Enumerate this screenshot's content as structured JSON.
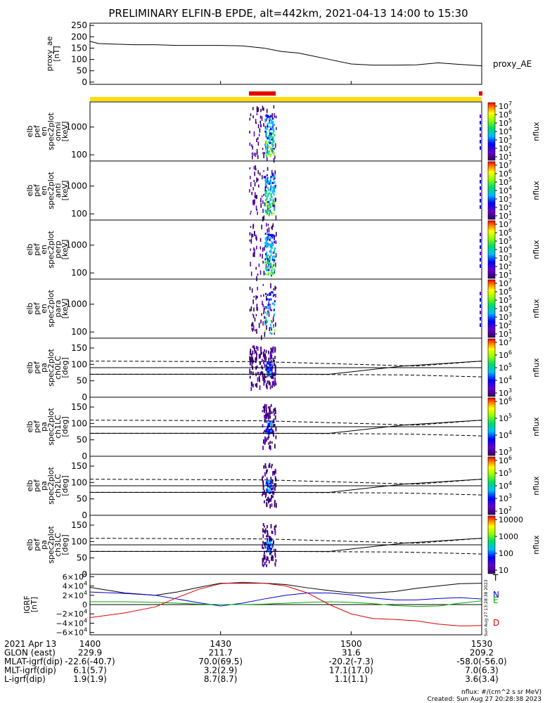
{
  "title": "PRELIMINARY ELFIN-B EPDE, alt=442km, 2021-04-13 14:00 to 15:30",
  "colors": {
    "sci_zone_bar": "#ffdd00",
    "sci_collection": "#e60000",
    "grf_T": "#000000",
    "grf_N": "#0000cc",
    "grf_E": "#00aa00",
    "grf_D": "#dd0000"
  },
  "footer": {
    "units": "nflux: #/(cm^2 s sr MeV)",
    "created": "Created: Sun Aug 27 20:28:38 2023",
    "side_stamp": "Sun Aug 27 13:28:38 2023"
  },
  "chart_data": [
    {
      "id": "proxy_ae",
      "type": "line",
      "ylabel": "proxy_ae [nT]",
      "legend": "proxy_AE",
      "ylim": [
        -10,
        260
      ],
      "yticks": [
        "0",
        "50",
        "100",
        "150",
        "200",
        "250"
      ],
      "x_minutes": [
        0,
        2,
        5,
        10,
        15,
        20,
        25,
        30,
        35,
        40,
        44,
        48,
        50,
        55,
        60,
        65,
        70,
        75,
        80,
        85,
        90
      ],
      "y": [
        180,
        170,
        168,
        165,
        165,
        162,
        162,
        162,
        160,
        150,
        135,
        128,
        120,
        100,
        80,
        75,
        75,
        76,
        85,
        78,
        72
      ]
    },
    {
      "id": "energy_panels",
      "type": "heatmap",
      "ylog": true,
      "ylim": [
        60,
        8000
      ],
      "yticks": [
        "100",
        "1000"
      ],
      "colorbar_label": "nflux",
      "colorbar_ticks": [
        "10^1",
        "10^2",
        "10^3",
        "10^4",
        "10^5",
        "10^6",
        "10^7"
      ],
      "panels": [
        {
          "ylabel": [
            "elb",
            "pef",
            "en",
            "spec2plot",
            "omni",
            "[keV]"
          ]
        },
        {
          "ylabel": [
            "elb",
            "pef",
            "en",
            "spec2plot",
            "anti",
            "[keV]"
          ]
        },
        {
          "ylabel": [
            "elb",
            "pef",
            "en",
            "spec2plot",
            "perp",
            "[keV]"
          ]
        },
        {
          "ylabel": [
            "elb",
            "pef",
            "en",
            "spec2plot",
            "para",
            "[keV]"
          ]
        }
      ]
    },
    {
      "id": "pitch_angle_panels",
      "type": "heatmap",
      "ylim": [
        0,
        180
      ],
      "yticks": [
        "0",
        "50",
        "100",
        "150"
      ],
      "colorbar_label": "nflux",
      "panels": [
        {
          "ylabel": [
            "elb",
            "pef",
            "pa",
            "spec2plot",
            "ch0LC",
            "[deg]"
          ],
          "colorbar_ticks": [
            "10^3",
            "10^4",
            "10^5",
            "10^6",
            "10^7"
          ]
        },
        {
          "ylabel": [
            "elb",
            "pef",
            "pa",
            "spec2plot",
            "ch1LC",
            "[deg]"
          ],
          "colorbar_ticks": [
            "10^3",
            "10^4",
            "10^5",
            "10^6"
          ]
        },
        {
          "ylabel": [
            "elb",
            "pef",
            "pa",
            "spec2plot",
            "ch2LC",
            "[deg]"
          ],
          "colorbar_ticks": [
            "10^2",
            "10^3",
            "10^4",
            "10^5",
            "10^6"
          ]
        },
        {
          "ylabel": [
            "elb",
            "pef",
            "pa",
            "spec2plot",
            "ch3LC",
            "[deg]"
          ],
          "colorbar_ticks": [
            "10",
            "100",
            "1000",
            "10000"
          ]
        }
      ]
    },
    {
      "id": "igrf",
      "type": "line",
      "ylabel": "IGRF [nT]",
      "ylim": [
        -65000,
        65000
      ],
      "yticks": [
        "6×10^4",
        "4×10^4",
        "2×10^4",
        "0",
        "−2×10^4",
        "−4×10^4",
        "−6×10^4"
      ],
      "x_minutes": [
        0,
        8,
        15,
        20,
        25,
        30,
        35,
        40,
        45,
        50,
        55,
        60,
        65,
        70,
        75,
        80,
        85,
        90
      ],
      "series": [
        {
          "name": "T",
          "values": [
            37000,
            25000,
            20000,
            27000,
            37000,
            46000,
            46000,
            46000,
            43000,
            36000,
            30000,
            25000,
            25000,
            28000,
            35000,
            40000,
            45000,
            46000
          ]
        },
        {
          "name": "N",
          "values": [
            27000,
            24000,
            20000,
            12000,
            4000,
            -3000,
            3000,
            12000,
            20000,
            25000,
            25000,
            21000,
            14000,
            10000,
            10000,
            13000,
            15000,
            12000
          ]
        },
        {
          "name": "E",
          "values": [
            6000,
            6000,
            5000,
            3000,
            1000,
            0,
            0,
            1000,
            3000,
            5000,
            6000,
            5000,
            2000,
            -2000,
            -4000,
            -3000,
            3000,
            8000
          ]
        },
        {
          "name": "D",
          "values": [
            -28000,
            -18000,
            -5000,
            15000,
            33000,
            45000,
            48000,
            46000,
            40000,
            25000,
            0,
            -20000,
            -30000,
            -32000,
            -35000,
            -42000,
            -46000,
            -45000
          ]
        }
      ]
    },
    {
      "id": "orbit_table",
      "type": "table",
      "rows": [
        {
          "label": "2021 Apr 13",
          "values": [
            "1400",
            "1430",
            "1500",
            "1530"
          ]
        },
        {
          "label": "GLON (east)",
          "values": [
            "229.9",
            "211.7",
            "31.6",
            "209.2"
          ]
        },
        {
          "label": "MLAT-igrf(dip)",
          "values": [
            "-22.6(-40.7)",
            "70.0(69.5)",
            "-20.2(-7.3)",
            "-58.0(-56.0)"
          ]
        },
        {
          "label": "MLT-igrf(dip)",
          "values": [
            "6.1(5.7)",
            "3.2(2.9)",
            "17.1(17.0)",
            "7.0(6.3)"
          ]
        },
        {
          "label": "L-igrf(dip)",
          "values": [
            "1.9(1.9)",
            "8.7(8.7)",
            "1.1(1.1)",
            "3.6(3.4)"
          ]
        }
      ]
    }
  ]
}
